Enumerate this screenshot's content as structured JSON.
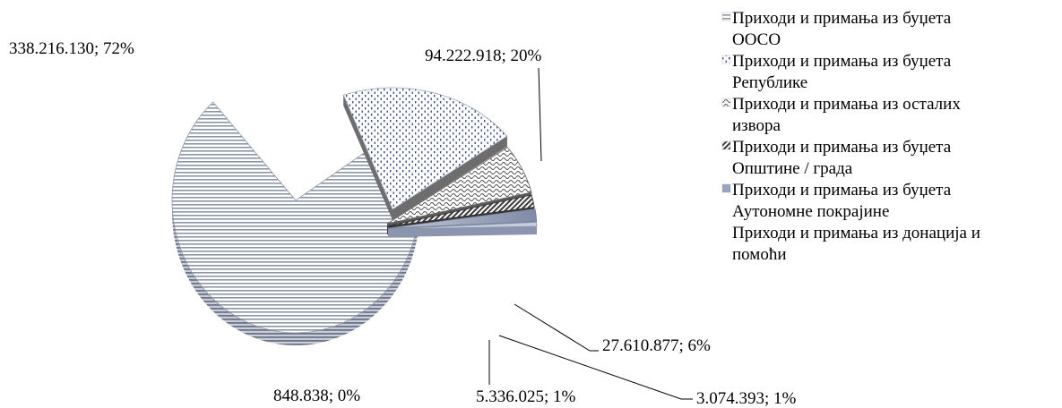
{
  "chart_data": {
    "type": "pie",
    "style": "3d-exploded",
    "title": "",
    "legend_position": "right",
    "slices": [
      {
        "name": "Приходи и примања из буџета ООСО",
        "value": 338216130,
        "label": "338.216.130; 72%",
        "color": "#8d96a8"
      },
      {
        "name": "Приходи и примања из буџета Републике",
        "value": 94222918,
        "label": "94.222.918; 20%",
        "color": "#3c4c86"
      },
      {
        "name": "Приходи и примања из  осталих извора",
        "value": 27610877,
        "label": "27.610.877; 6%",
        "color": "#555555"
      },
      {
        "name": "Приходи и примања из буџета Општине / града",
        "value": 3074393,
        "label": "3.074.393; 1%",
        "color": "#3a3a3a"
      },
      {
        "name": "Приходи и примања из буџета Аутономне покрајине",
        "value": 5336025,
        "label": "5.336.025; 1%",
        "color": "#97a3bd"
      },
      {
        "name": "Приходи и примања из донација и помоћи",
        "value": 848838,
        "label": "848.838; 0%",
        "color": "#bfc6d6"
      }
    ],
    "legend": [
      {
        "lines": [
          "Приходи и примања из буџета",
          "ООСО"
        ],
        "marker": "hlines"
      },
      {
        "lines": [
          "Приходи и примања из буџета",
          "Републике"
        ],
        "marker": "dots"
      },
      {
        "lines": [
          "Приходи и примања из  осталих",
          "извора"
        ],
        "marker": "wave"
      },
      {
        "lines": [
          "Приходи и примања из буџета",
          "Општине / града"
        ],
        "marker": "diag"
      },
      {
        "lines": [
          "Приходи и примања из буџета",
          "Аутономне покрајине"
        ],
        "marker": "solid"
      },
      {
        "lines": [
          "Приходи и примања из донација и",
          "помоћи"
        ],
        "marker": "none"
      }
    ]
  }
}
